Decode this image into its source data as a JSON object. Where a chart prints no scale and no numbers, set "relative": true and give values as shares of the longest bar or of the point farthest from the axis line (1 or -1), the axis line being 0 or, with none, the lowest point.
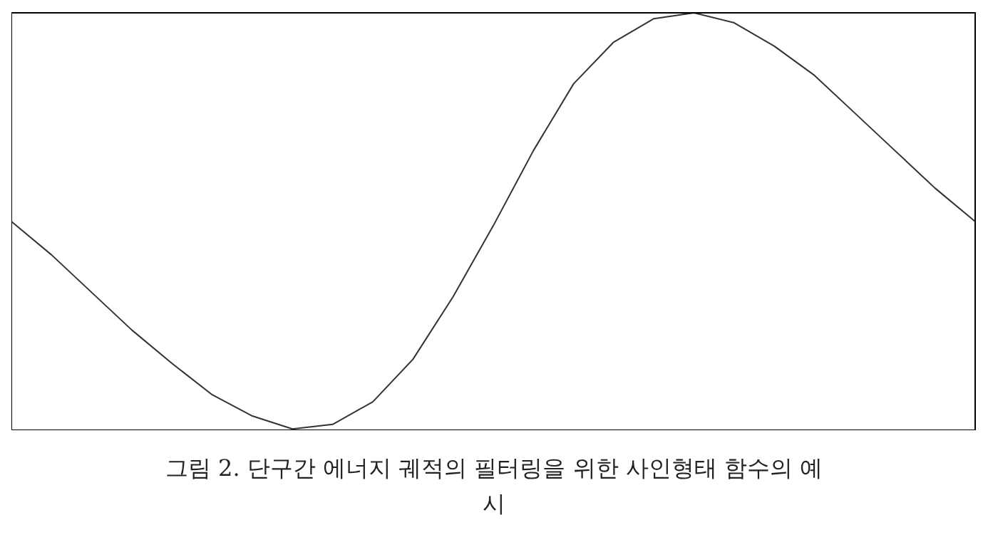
{
  "chart_data": {
    "type": "line",
    "relative": true,
    "categories": [
      null,
      null,
      null,
      null,
      null,
      null,
      null,
      null,
      null,
      null,
      null,
      null,
      null,
      null,
      null,
      null,
      null,
      null,
      null,
      null,
      null,
      null,
      null,
      null,
      null
    ],
    "series": [
      {
        "color": "#333333",
        "values": [
          0.5,
          0.42,
          0.33,
          0.24,
          0.16,
          0.085,
          0.034,
          0.003,
          0.014,
          0.068,
          0.17,
          0.32,
          0.49,
          0.67,
          0.83,
          0.93,
          0.986,
          1,
          0.976,
          0.92,
          0.85,
          0.76,
          0.67,
          0.58,
          0.5
        ]
      }
    ],
    "marker": "none",
    "grid": false,
    "legend": false,
    "annotations": [
      "그림 2. 단구간 에너지 궤적의 필터링을 위한 사인형태 함수의 예시"
    ]
  }
}
